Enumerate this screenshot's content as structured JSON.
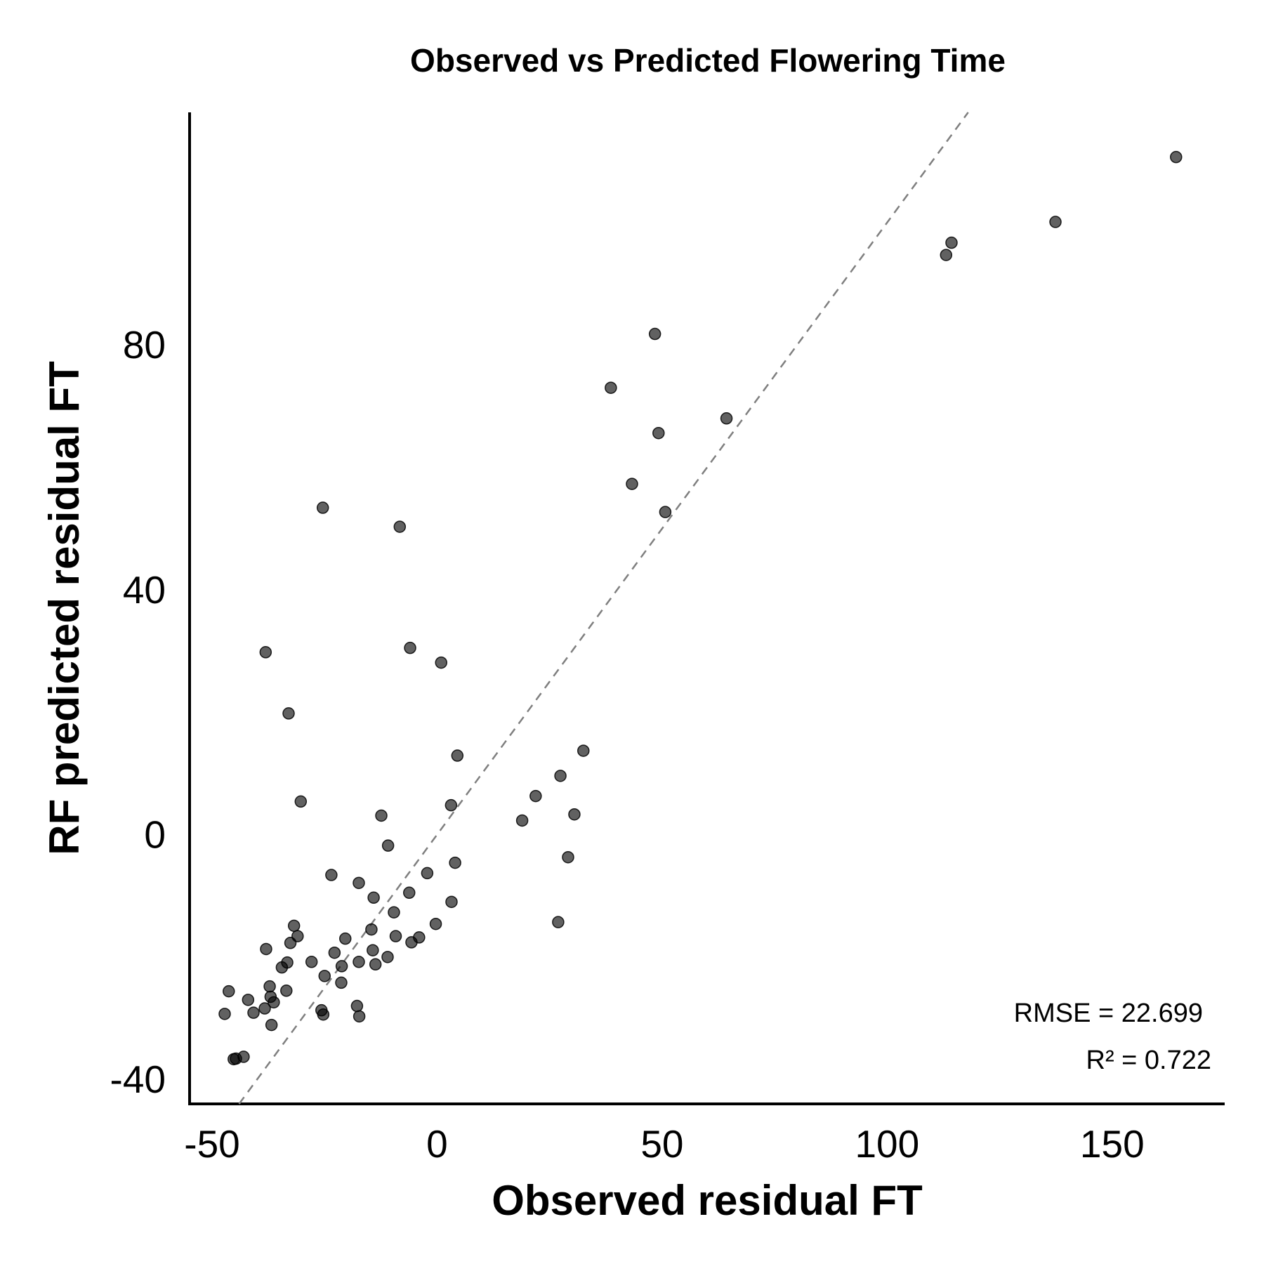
{
  "chart_data": {
    "type": "scatter",
    "title": "Observed vs Predicted Flowering Time",
    "xlabel": "Observed residual FT",
    "ylabel": "RF predicted residual FT",
    "xlim": [
      -55,
      175
    ],
    "ylim": [
      -44,
      118
    ],
    "x_ticks": [
      -50,
      0,
      50,
      100,
      150
    ],
    "y_ticks": [
      -40,
      0,
      40,
      80
    ],
    "x_tick_labels": [
      "-50",
      "0",
      "50",
      "100",
      "150"
    ],
    "y_tick_labels": [
      "-40",
      "0",
      "40",
      "80"
    ],
    "grid": false,
    "reference_line": {
      "style": "dashed",
      "color": "#7f7f7f",
      "slope": 1,
      "intercept": 0
    },
    "annotations": [
      "RMSE = 22.699",
      "R² = 0.722"
    ],
    "marker_color": "#000000",
    "points": [
      {
        "x": 164.2,
        "y": 110.7
      },
      {
        "x": 137.4,
        "y": 100.1
      },
      {
        "x": 114.3,
        "y": 96.7
      },
      {
        "x": 113.1,
        "y": 94.7
      },
      {
        "x": 48.4,
        "y": 81.8
      },
      {
        "x": 38.6,
        "y": 73.0
      },
      {
        "x": 64.3,
        "y": 68.0
      },
      {
        "x": 49.2,
        "y": 65.6
      },
      {
        "x": 43.3,
        "y": 57.3
      },
      {
        "x": 50.7,
        "y": 52.7
      },
      {
        "x": -25.4,
        "y": 53.4
      },
      {
        "x": -8.3,
        "y": 50.3
      },
      {
        "x": -6.0,
        "y": 30.5
      },
      {
        "x": -38.1,
        "y": 29.8
      },
      {
        "x": 0.9,
        "y": 28.1
      },
      {
        "x": -33.0,
        "y": 19.8
      },
      {
        "x": 32.5,
        "y": 13.7
      },
      {
        "x": 4.5,
        "y": 12.9
      },
      {
        "x": 27.4,
        "y": 9.6
      },
      {
        "x": 21.9,
        "y": 6.3
      },
      {
        "x": -30.3,
        "y": 5.4
      },
      {
        "x": 3.1,
        "y": 4.8
      },
      {
        "x": -12.4,
        "y": 3.1
      },
      {
        "x": 30.5,
        "y": 3.3
      },
      {
        "x": 18.9,
        "y": 2.3
      },
      {
        "x": -10.9,
        "y": -1.8
      },
      {
        "x": 29.1,
        "y": -3.7
      },
      {
        "x": 4.0,
        "y": -4.6
      },
      {
        "x": -23.5,
        "y": -6.6
      },
      {
        "x": -2.2,
        "y": -6.3
      },
      {
        "x": -17.4,
        "y": -7.9
      },
      {
        "x": -6.2,
        "y": -9.5
      },
      {
        "x": -14.1,
        "y": -10.3
      },
      {
        "x": 3.2,
        "y": -11.0
      },
      {
        "x": -9.6,
        "y": -12.7
      },
      {
        "x": 26.9,
        "y": -14.3
      },
      {
        "x": -0.3,
        "y": -14.6
      },
      {
        "x": -31.8,
        "y": -14.9
      },
      {
        "x": -14.6,
        "y": -15.5
      },
      {
        "x": -31.0,
        "y": -16.6
      },
      {
        "x": -9.2,
        "y": -16.6
      },
      {
        "x": -4.0,
        "y": -16.8
      },
      {
        "x": -20.4,
        "y": -17.0
      },
      {
        "x": -5.7,
        "y": -17.6
      },
      {
        "x": -32.6,
        "y": -17.7
      },
      {
        "x": -38.0,
        "y": -18.7
      },
      {
        "x": -14.3,
        "y": -18.9
      },
      {
        "x": -22.8,
        "y": -19.3
      },
      {
        "x": -11.0,
        "y": -20.0
      },
      {
        "x": -27.9,
        "y": -20.8
      },
      {
        "x": -17.4,
        "y": -20.8
      },
      {
        "x": -33.3,
        "y": -20.9
      },
      {
        "x": -13.7,
        "y": -21.2
      },
      {
        "x": -21.2,
        "y": -21.5
      },
      {
        "x": -34.5,
        "y": -21.7
      },
      {
        "x": -25.0,
        "y": -23.1
      },
      {
        "x": -21.3,
        "y": -24.2
      },
      {
        "x": -37.2,
        "y": -24.8
      },
      {
        "x": -46.3,
        "y": -25.6
      },
      {
        "x": -33.5,
        "y": -25.5
      },
      {
        "x": -37.0,
        "y": -26.5
      },
      {
        "x": -42.0,
        "y": -27.0
      },
      {
        "x": -36.3,
        "y": -27.4
      },
      {
        "x": -17.8,
        "y": -28.0
      },
      {
        "x": -38.3,
        "y": -28.4
      },
      {
        "x": -25.7,
        "y": -28.7
      },
      {
        "x": -40.8,
        "y": -29.1
      },
      {
        "x": -47.2,
        "y": -29.3
      },
      {
        "x": -25.3,
        "y": -29.4
      },
      {
        "x": -17.3,
        "y": -29.7
      },
      {
        "x": -36.8,
        "y": -31.1
      },
      {
        "x": -43.0,
        "y": -36.3
      },
      {
        "x": -44.7,
        "y": -36.6
      },
      {
        "x": -45.2,
        "y": -36.7
      }
    ]
  }
}
